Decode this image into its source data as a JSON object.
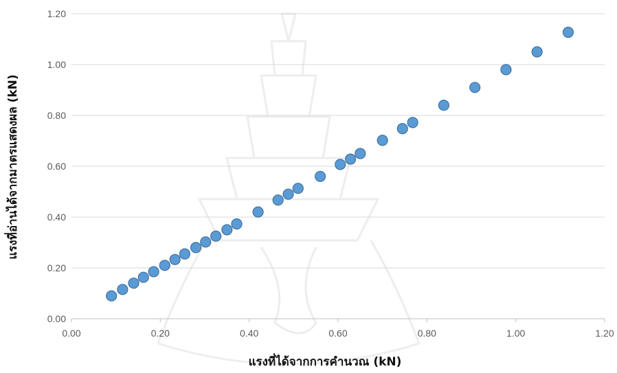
{
  "chart_data": {
    "type": "scatter",
    "xlabel": "แรงที่ได้จากการคำนวณ (kN)",
    "ylabel": "แรงที่อ่านได้จากมาตรแสดงผล (kN)",
    "xlim": [
      0,
      1.2
    ],
    "ylim": [
      0,
      1.2
    ],
    "x_ticks": [
      "0.00",
      "0.20",
      "0.40",
      "0.60",
      "0.80",
      "1.00",
      "1.20"
    ],
    "y_ticks": [
      "0.00",
      "0.20",
      "0.40",
      "0.60",
      "0.80",
      "1.00",
      "1.20"
    ],
    "grid": "horizontal",
    "legend": "none",
    "marker_color": "#5b9bd5",
    "marker_edge": "#41719c",
    "points": [
      {
        "x": 0.09,
        "y": 0.09
      },
      {
        "x": 0.115,
        "y": 0.115
      },
      {
        "x": 0.14,
        "y": 0.14
      },
      {
        "x": 0.162,
        "y": 0.163
      },
      {
        "x": 0.185,
        "y": 0.185
      },
      {
        "x": 0.21,
        "y": 0.21
      },
      {
        "x": 0.233,
        "y": 0.233
      },
      {
        "x": 0.255,
        "y": 0.255
      },
      {
        "x": 0.28,
        "y": 0.28
      },
      {
        "x": 0.302,
        "y": 0.302
      },
      {
        "x": 0.325,
        "y": 0.325
      },
      {
        "x": 0.35,
        "y": 0.35
      },
      {
        "x": 0.372,
        "y": 0.373
      },
      {
        "x": 0.42,
        "y": 0.42
      },
      {
        "x": 0.465,
        "y": 0.467
      },
      {
        "x": 0.488,
        "y": 0.49
      },
      {
        "x": 0.51,
        "y": 0.513
      },
      {
        "x": 0.56,
        "y": 0.56
      },
      {
        "x": 0.605,
        "y": 0.607
      },
      {
        "x": 0.628,
        "y": 0.628
      },
      {
        "x": 0.65,
        "y": 0.65
      },
      {
        "x": 0.7,
        "y": 0.702
      },
      {
        "x": 0.745,
        "y": 0.748
      },
      {
        "x": 0.768,
        "y": 0.772
      },
      {
        "x": 0.838,
        "y": 0.84
      },
      {
        "x": 0.908,
        "y": 0.91
      },
      {
        "x": 0.978,
        "y": 0.98
      },
      {
        "x": 1.048,
        "y": 1.05
      },
      {
        "x": 1.118,
        "y": 1.127
      }
    ]
  }
}
